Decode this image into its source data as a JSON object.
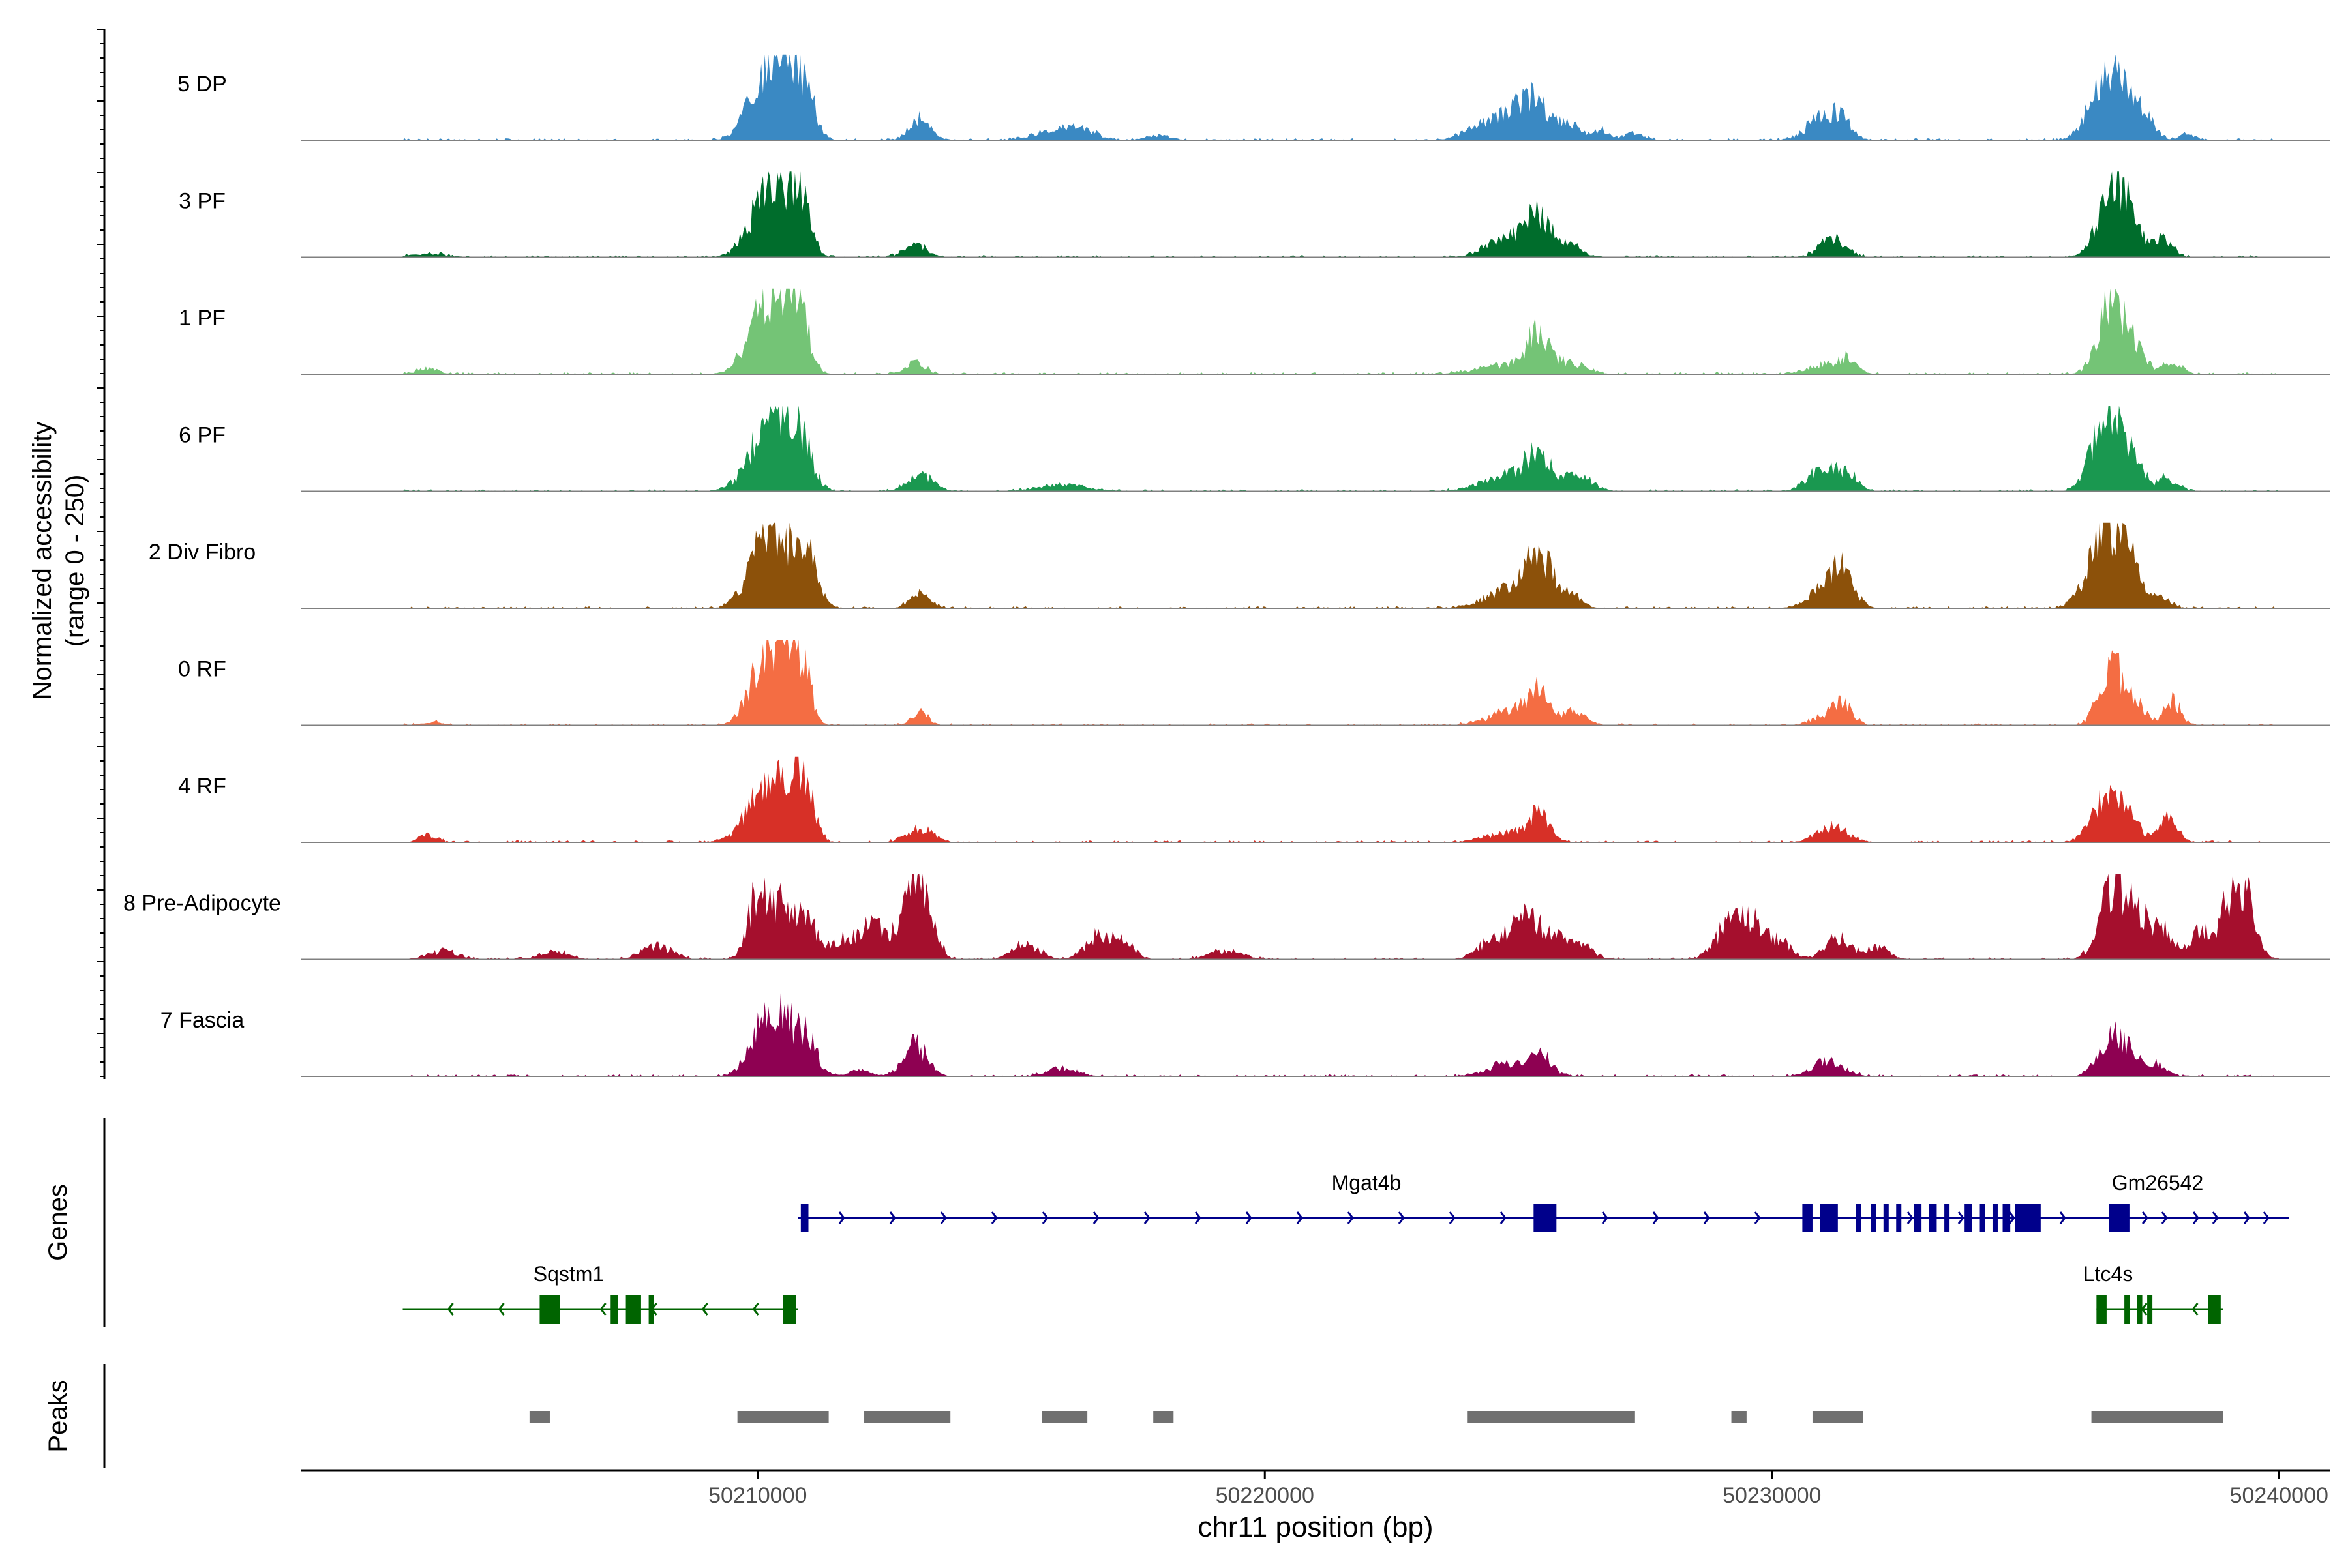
{
  "chart_data": {
    "type": "area",
    "title": "",
    "ylabel_line1": "Normalized accessibility",
    "ylabel_line2": "(range 0 - 250)",
    "xlabel": "chr11 position (bp)",
    "xlim": [
      50201000,
      50241000
    ],
    "ylim": [
      0,
      250
    ],
    "x_ticks": [
      50210000,
      50220000,
      50230000,
      50240000
    ],
    "x_tick_labels": [
      "50210000",
      "50220000",
      "50230000",
      "50240000"
    ],
    "genes_label": "Genes",
    "peaks_label": "Peaks",
    "tracks": [
      {
        "name": "5 DP",
        "color": "#3A89C3",
        "peaks": [
          [
            50210150,
            200,
            320
          ],
          [
            50210500,
            120,
            220
          ],
          [
            50210700,
            140,
            200
          ],
          [
            50211000,
            100,
            180
          ],
          [
            50213200,
            70,
            200
          ],
          [
            50215800,
            25,
            400
          ],
          [
            50216400,
            30,
            300
          ],
          [
            50217900,
            15,
            250
          ],
          [
            50224500,
            50,
            450
          ],
          [
            50225400,
            90,
            260
          ],
          [
            50225000,
            60,
            300
          ],
          [
            50226000,
            45,
            220
          ],
          [
            50226600,
            30,
            180
          ],
          [
            50227300,
            25,
            180
          ],
          [
            50231000,
            70,
            300
          ],
          [
            50231400,
            55,
            180
          ],
          [
            50236600,
            195,
            320
          ],
          [
            50237000,
            90,
            220
          ],
          [
            50237400,
            55,
            180
          ],
          [
            50238200,
            18,
            160
          ]
        ]
      },
      {
        "name": "3 PF",
        "color": "#006D2C",
        "peaks": [
          [
            50210150,
            175,
            330
          ],
          [
            50210600,
            150,
            220
          ],
          [
            50210900,
            120,
            180
          ],
          [
            50213100,
            40,
            220
          ],
          [
            50203500,
            10,
            350
          ],
          [
            50224800,
            60,
            400
          ],
          [
            50225400,
            115,
            230
          ],
          [
            50226000,
            35,
            250
          ],
          [
            50231200,
            60,
            260
          ],
          [
            50236700,
            215,
            260
          ],
          [
            50237100,
            90,
            200
          ],
          [
            50237700,
            65,
            180
          ]
        ]
      },
      {
        "name": "1 PF",
        "color": "#74C476",
        "peaks": [
          [
            50210150,
            220,
            330
          ],
          [
            50210600,
            140,
            200
          ],
          [
            50210900,
            120,
            180
          ],
          [
            50213100,
            35,
            200
          ],
          [
            50203500,
            20,
            200
          ],
          [
            50224900,
            30,
            600
          ],
          [
            50225400,
            110,
            220
          ],
          [
            50226100,
            30,
            280
          ],
          [
            50231000,
            30,
            300
          ],
          [
            50231500,
            45,
            180
          ],
          [
            50236700,
            235,
            250
          ],
          [
            50237200,
            65,
            200
          ],
          [
            50237900,
            40,
            180
          ]
        ]
      },
      {
        "name": "6 PF",
        "color": "#1A9850",
        "peaks": [
          [
            50210150,
            175,
            350
          ],
          [
            50210500,
            150,
            200
          ],
          [
            50210900,
            140,
            200
          ],
          [
            50213200,
            55,
            250
          ],
          [
            50216000,
            20,
            500
          ],
          [
            50224800,
            50,
            500
          ],
          [
            50225400,
            95,
            260
          ],
          [
            50226200,
            50,
            260
          ],
          [
            50231000,
            70,
            300
          ],
          [
            50231500,
            45,
            200
          ],
          [
            50236600,
            240,
            280
          ],
          [
            50237100,
            85,
            220
          ],
          [
            50237800,
            40,
            200
          ]
        ]
      },
      {
        "name": "2 Div Fibro",
        "color": "#8C510A",
        "peaks": [
          [
            50210150,
            225,
            320
          ],
          [
            50210700,
            130,
            250
          ],
          [
            50211000,
            120,
            200
          ],
          [
            50213200,
            45,
            200
          ],
          [
            50224800,
            55,
            450
          ],
          [
            50225400,
            150,
            260
          ],
          [
            50226000,
            45,
            220
          ],
          [
            50231000,
            55,
            300
          ],
          [
            50231400,
            110,
            220
          ],
          [
            50236600,
            250,
            330
          ],
          [
            50237100,
            90,
            220
          ],
          [
            50237700,
            30,
            180
          ]
        ]
      },
      {
        "name": "0 RF",
        "color": "#F46D43",
        "peaks": [
          [
            50210150,
            210,
            300
          ],
          [
            50210600,
            180,
            200
          ],
          [
            50210900,
            160,
            160
          ],
          [
            50213200,
            40,
            160
          ],
          [
            50203600,
            10,
            200
          ],
          [
            50224900,
            45,
            450
          ],
          [
            50225400,
            90,
            220
          ],
          [
            50226100,
            40,
            220
          ],
          [
            50231000,
            25,
            250
          ],
          [
            50231400,
            75,
            180
          ],
          [
            50236700,
            185,
            240
          ],
          [
            50237200,
            55,
            200
          ],
          [
            50237900,
            75,
            160
          ]
        ]
      },
      {
        "name": "4 RF",
        "color": "#D73027",
        "peaks": [
          [
            50210150,
            160,
            360
          ],
          [
            50210650,
            160,
            200
          ],
          [
            50210950,
            155,
            180
          ],
          [
            50213200,
            45,
            250
          ],
          [
            50203500,
            25,
            160
          ],
          [
            50224800,
            30,
            450
          ],
          [
            50225400,
            85,
            200
          ],
          [
            50231200,
            50,
            300
          ],
          [
            50236600,
            145,
            280
          ],
          [
            50237100,
            55,
            200
          ],
          [
            50237800,
            75,
            180
          ]
        ]
      },
      {
        "name": "8 Pre-Adipocyte",
        "color": "#A50F2D",
        "peaks": [
          [
            50210000,
            200,
            200
          ],
          [
            50210500,
            160,
            220
          ],
          [
            50211000,
            130,
            180
          ],
          [
            50211700,
            70,
            250
          ],
          [
            50212300,
            110,
            220
          ],
          [
            50213000,
            190,
            220
          ],
          [
            50213300,
            170,
            200
          ],
          [
            50215300,
            50,
            250
          ],
          [
            50216700,
            70,
            250
          ],
          [
            50217200,
            60,
            220
          ],
          [
            50224500,
            60,
            300
          ],
          [
            50225100,
            110,
            250
          ],
          [
            50225600,
            80,
            250
          ],
          [
            50226200,
            45,
            260
          ],
          [
            50229200,
            110,
            300
          ],
          [
            50229700,
            85,
            220
          ],
          [
            50230200,
            50,
            200
          ],
          [
            50231300,
            70,
            250
          ],
          [
            50232100,
            40,
            220
          ],
          [
            50236700,
            215,
            250
          ],
          [
            50237200,
            140,
            220
          ],
          [
            50237700,
            90,
            200
          ],
          [
            50238400,
            80,
            200
          ],
          [
            50238900,
            110,
            200
          ],
          [
            50239300,
            200,
            220
          ],
          [
            50203800,
            25,
            300
          ],
          [
            50206000,
            25,
            300
          ],
          [
            50208000,
            40,
            300
          ],
          [
            50219200,
            30,
            300
          ]
        ]
      },
      {
        "name": "7 Fascia",
        "color": "#8E0152",
        "peaks": [
          [
            50210150,
            160,
            300
          ],
          [
            50210600,
            120,
            220
          ],
          [
            50211000,
            110,
            180
          ],
          [
            50213100,
            100,
            230
          ],
          [
            50212000,
            25,
            200
          ],
          [
            50216000,
            25,
            300
          ],
          [
            50224800,
            40,
            400
          ],
          [
            50225400,
            65,
            230
          ],
          [
            50231100,
            50,
            300
          ],
          [
            50236700,
            120,
            250
          ],
          [
            50237100,
            45,
            220
          ],
          [
            50237600,
            35,
            180
          ]
        ]
      }
    ],
    "genes": [
      {
        "name": "Mgat4b",
        "strand": "+",
        "color": "#00008B",
        "start": 50210800,
        "end": 50240200,
        "row": 0,
        "exons": [
          [
            50210850,
            50211000
          ],
          [
            50225300,
            50225750
          ],
          [
            50230600,
            50230800
          ],
          [
            50230950,
            50231300
          ],
          [
            50231650,
            50231750
          ],
          [
            50231950,
            50232050
          ],
          [
            50232200,
            50232300
          ],
          [
            50232450,
            50232550
          ],
          [
            50232800,
            50232950
          ],
          [
            50233100,
            50233250
          ],
          [
            50233400,
            50233500
          ],
          [
            50233800,
            50233950
          ],
          [
            50234100,
            50234200
          ],
          [
            50234350,
            50234450
          ],
          [
            50234550,
            50234700
          ],
          [
            50234800,
            50235300
          ],
          [
            50236650,
            50237050
          ]
        ]
      },
      {
        "name": "Gm26542",
        "strand": "+",
        "color": "#00008B",
        "start": 50236500,
        "end": 50240200,
        "row": 0,
        "exons": []
      },
      {
        "name": "Sqstm1",
        "strand": "-",
        "color": "#006400",
        "start": 50203000,
        "end": 50210800,
        "row": 1,
        "exons": [
          [
            50205700,
            50206100
          ],
          [
            50207100,
            50207250
          ],
          [
            50207400,
            50207700
          ],
          [
            50207850,
            50207950
          ],
          [
            50210500,
            50210750
          ]
        ]
      },
      {
        "name": "Ltc4s",
        "strand": "-",
        "color": "#006400",
        "start": 50236400,
        "end": 50238900,
        "row": 1,
        "exons": [
          [
            50236400,
            50236600
          ],
          [
            50236950,
            50237050
          ],
          [
            50237200,
            50237300
          ],
          [
            50237400,
            50237500
          ],
          [
            50238600,
            50238850
          ]
        ]
      }
    ],
    "peak_regions": [
      [
        50205500,
        50205900
      ],
      [
        50209600,
        50211400
      ],
      [
        50212100,
        50213800
      ],
      [
        50215600,
        50216500
      ],
      [
        50217800,
        50218200
      ],
      [
        50224000,
        50227300
      ],
      [
        50229200,
        50229500
      ],
      [
        50230800,
        50231800
      ],
      [
        50236300,
        50238900
      ]
    ]
  }
}
